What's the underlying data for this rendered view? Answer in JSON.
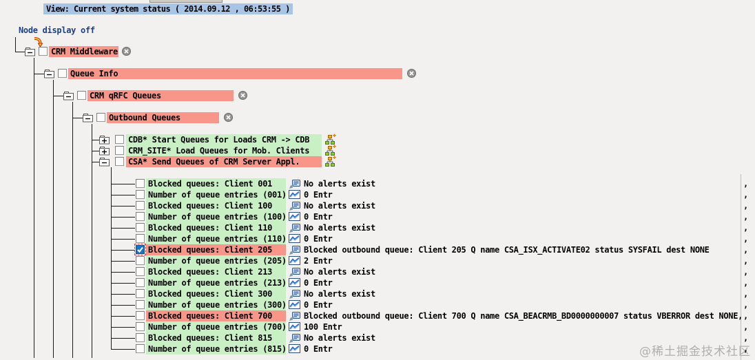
{
  "header": {
    "view_bar": "View: Current system status ( 2014.09.12 , 06:53:55 )",
    "node_display_label": "Node display off"
  },
  "colors": {
    "title_bar_blue": "#a9c5e6",
    "alert_red": "#f9968a",
    "ok_green": "#c9efc4",
    "checked_checkbox_blue": "#1a72c8"
  },
  "tree": {
    "branch_nodes": [
      {
        "label": "CRM Middleware",
        "severity": "alert",
        "expanded": true,
        "closable": true
      },
      {
        "label": "Queue Info",
        "severity": "alert",
        "expanded": true,
        "closable": true
      },
      {
        "label": "CRM qRFC Queues",
        "severity": "alert",
        "expanded": true,
        "closable": true
      },
      {
        "label": "Outbound Queues",
        "severity": "alert",
        "expanded": true,
        "closable": true
      }
    ],
    "queue_groups": [
      {
        "label": "CDB* Start Queues for Loads CRM -> CDB",
        "severity": "ok",
        "expanded": false
      },
      {
        "label": "CRM_SITE* Load Queues for Mob. Clients",
        "severity": "ok",
        "expanded": false
      },
      {
        "label": "CSA* Send Queues of CRM Server Appl.",
        "severity": "alert",
        "expanded": true
      }
    ],
    "monitor_nodes": [
      {
        "label": "Blocked queues: Client 001",
        "severity": "ok",
        "icon": "alerts",
        "checked": false,
        "value": "No alerts exist",
        "trailing": ","
      },
      {
        "label": "Number of queue entries (001)",
        "severity": "ok",
        "icon": "chart",
        "checked": false,
        "value": "0 Entr",
        "trailing": ","
      },
      {
        "label": "Blocked queues: Client 100",
        "severity": "ok",
        "icon": "alerts",
        "checked": false,
        "value": "No alerts exist",
        "trailing": ","
      },
      {
        "label": "Number of queue entries (100)",
        "severity": "ok",
        "icon": "chart",
        "checked": false,
        "value": "0 Entr",
        "trailing": ","
      },
      {
        "label": "Blocked queues: Client 110",
        "severity": "ok",
        "icon": "alerts",
        "checked": false,
        "value": "No alerts exist",
        "trailing": ","
      },
      {
        "label": "Number of queue entries (110)",
        "severity": "ok",
        "icon": "chart",
        "checked": false,
        "value": "0 Entr",
        "trailing": ","
      },
      {
        "label": "Blocked queues: Client 205",
        "severity": "alert",
        "icon": "alerts",
        "checked": true,
        "value": "Blocked outbound queue: Client 205 Q name CSA_ISX_ACTIVATE02 status SYSFAIL dest NONE",
        "trailing": ","
      },
      {
        "label": "Number of queue entries (205)",
        "severity": "ok",
        "icon": "chart",
        "checked": false,
        "value": "2 Entr",
        "trailing": ","
      },
      {
        "label": "Blocked queues: Client 213",
        "severity": "ok",
        "icon": "alerts",
        "checked": false,
        "value": "No alerts exist",
        "trailing": ","
      },
      {
        "label": "Number of queue entries (213)",
        "severity": "ok",
        "icon": "chart",
        "checked": false,
        "value": "0 Entr",
        "trailing": ","
      },
      {
        "label": "Blocked queues: Client 300",
        "severity": "ok",
        "icon": "alerts",
        "checked": false,
        "value": "No alerts exist",
        "trailing": ","
      },
      {
        "label": "Number of queue entries (300)",
        "severity": "ok",
        "icon": "chart",
        "checked": false,
        "value": "0 Entr",
        "trailing": ","
      },
      {
        "label": "Blocked queues: Client 700",
        "severity": "alert",
        "icon": "alerts",
        "checked": false,
        "value": "Blocked outbound queue: Client 700 Q name CSA_BEACRMB_BD0000000007 status VBERROR dest NONE,",
        "trailing": ","
      },
      {
        "label": "Number of queue entries (700)",
        "severity": "ok",
        "icon": "chart",
        "checked": false,
        "value": "100 Entr",
        "trailing": ","
      },
      {
        "label": "Blocked queues: Client 815",
        "severity": "ok",
        "icon": "alerts",
        "checked": false,
        "value": "No alerts exist",
        "trailing": ","
      },
      {
        "label": "Number of queue entries (815)",
        "severity": "ok",
        "icon": "chart",
        "checked": false,
        "value": "0 Entr",
        "trailing": ","
      }
    ]
  },
  "watermark": "@稀土掘金技术社区"
}
